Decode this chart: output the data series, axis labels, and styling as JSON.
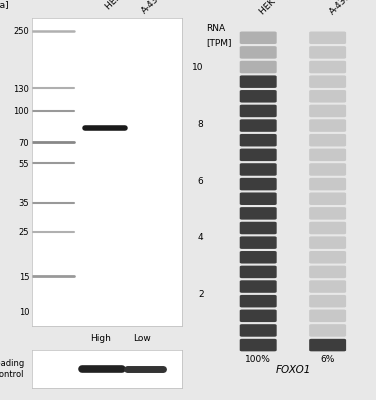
{
  "bg_color": "#e8e8e8",
  "wb_bg": "#f8f8f8",
  "kda_labels": [
    "250",
    "130",
    "100",
    "70",
    "55",
    "35",
    "25",
    "15",
    "10"
  ],
  "kda_values": [
    250,
    130,
    100,
    70,
    55,
    35,
    25,
    15,
    10
  ],
  "rna_yticks": [
    2,
    4,
    6,
    8,
    10
  ],
  "rna_n_rows": 22,
  "rna_hek_color": "#3d3d3d",
  "rna_hek_light": "#b0b0b0",
  "rna_a431_light_color": "#c8c8c8",
  "rna_a431_dark_color": "#3d3d3d",
  "hek_pct": "100%",
  "a431_pct": "6%",
  "foxo1_label": "FOXO1",
  "loading_ctrl_label": "Loading\nControl"
}
